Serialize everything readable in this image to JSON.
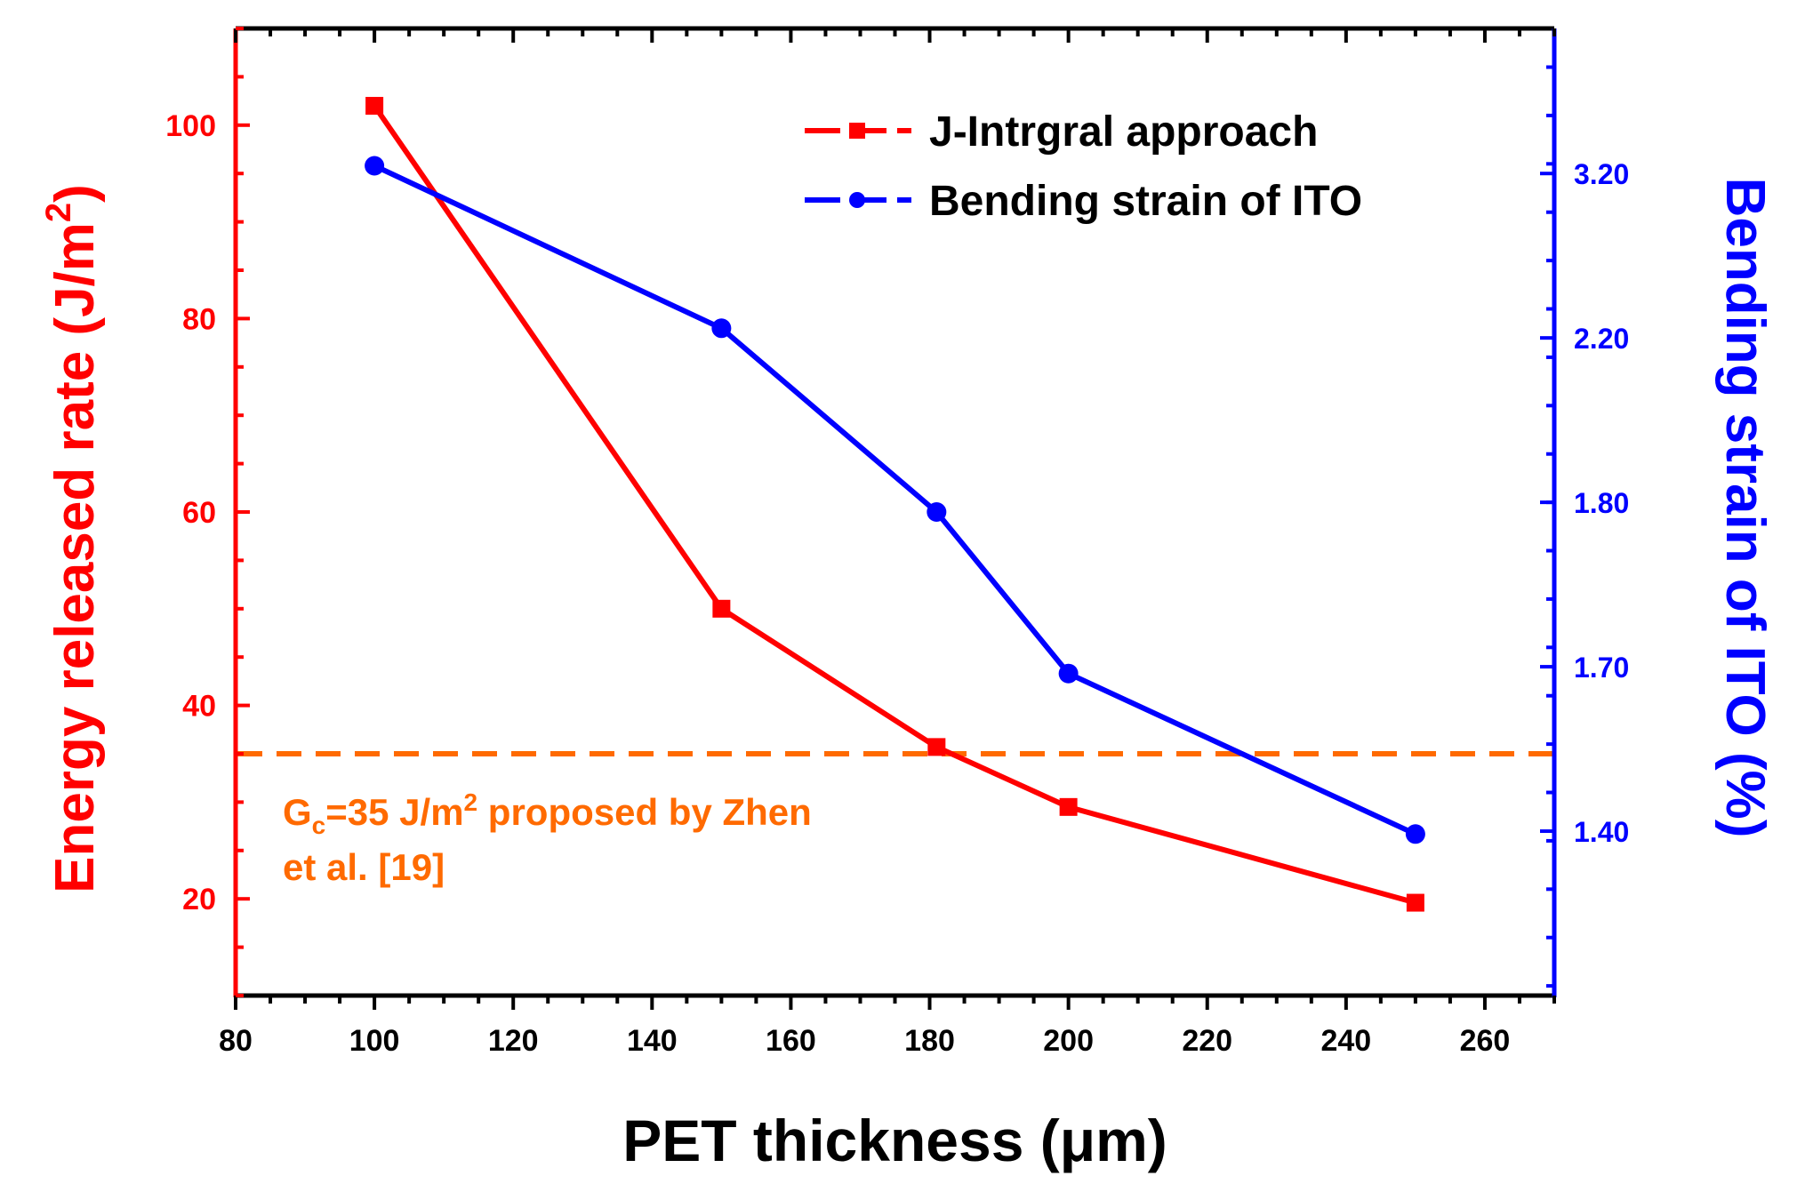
{
  "chart_data": {
    "type": "line",
    "x_axis": {
      "label": "PET thickness (μm)",
      "range": [
        80,
        270
      ],
      "ticks": [
        80,
        100,
        120,
        140,
        160,
        180,
        200,
        220,
        240,
        260
      ],
      "tick_labels": [
        "80",
        "100",
        "120",
        "140",
        "160",
        "180",
        "200",
        "220",
        "240",
        "260"
      ]
    },
    "y_left": {
      "label_main": "Energy released rate (J/m",
      "label_sup": "2",
      "label_end": ")",
      "range": [
        10,
        110
      ],
      "ticks": [
        20,
        40,
        60,
        80,
        100
      ],
      "tick_labels": [
        "20",
        "40",
        "60",
        "80",
        "100"
      ],
      "color": "#ff0000"
    },
    "y_right": {
      "label": "Bending strain of ITO (%)",
      "tick_labels": [
        "1.40",
        "1.70",
        "1.80",
        "2.20",
        "3.20"
      ],
      "tick_positions_left_units": [
        27,
        44,
        61,
        78,
        95
      ],
      "color": "#0000ff"
    },
    "series": [
      {
        "name": "J-Intrgral approach",
        "color": "#ff0000",
        "marker": "square",
        "axis": "left",
        "x": [
          100,
          150,
          181,
          200,
          250
        ],
        "y": [
          102,
          50,
          35.7,
          29.5,
          19.6
        ]
      },
      {
        "name": "Bending strain of ITO",
        "color": "#0000ff",
        "marker": "circle",
        "axis": "right",
        "x": [
          100,
          150,
          181,
          200,
          250
        ],
        "y": [
          3.2,
          2.2,
          1.8,
          1.7,
          1.4
        ],
        "y_plot_left_units": [
          95.8,
          79,
          60,
          43.3,
          26.7
        ]
      }
    ],
    "reference_line": {
      "y": 35,
      "style": "dashed",
      "color": "#ff6a00",
      "annotation": {
        "prefix": "G",
        "sub": "c",
        "mid": "=35 J/m",
        "sup": "2",
        "rest": " proposed by Zhen",
        "line2": "et al. [19]"
      }
    },
    "legend": {
      "position": "top-right",
      "entries": [
        "J-Intrgral approach",
        "Bending strain of ITO"
      ]
    }
  }
}
